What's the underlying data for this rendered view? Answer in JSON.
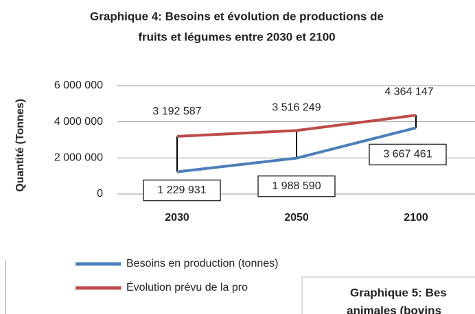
{
  "chart_data": {
    "type": "line",
    "title": [
      "Graphique 4: Besoins et évolution de productions de",
      "fruits et légumes entre 2030 et 2100"
    ],
    "y_label": "Quantité (Tonnes)",
    "categories": [
      "2030",
      "2050",
      "2100"
    ],
    "series": [
      {
        "name": "Besoins en production (tonnes)",
        "color": "#4a7ebb",
        "values": [
          1229931,
          1988590,
          3667461
        ],
        "value_labels": [
          "1 229 931",
          "1 988 590",
          "3 667 461"
        ]
      },
      {
        "name": "Évolution prévu de la pro",
        "color": "#be4b48",
        "values": [
          3192587,
          3516249,
          4364147
        ],
        "value_labels": [
          "3 192 587",
          "3 516 249",
          "4 364 147"
        ]
      }
    ],
    "ylim": [
      0,
      6000000
    ],
    "yticks": [
      0,
      {
        "value": 2000000,
        "label": "2 000 000"
      },
      {
        "value": 4000000,
        "label": "4 000 000"
      },
      {
        "value": 6000000,
        "label": "6 000 000"
      }
    ],
    "grid": true
  },
  "overlay": {
    "title": [
      "Graphique 5: Bes",
      "animales (bovins"
    ]
  }
}
